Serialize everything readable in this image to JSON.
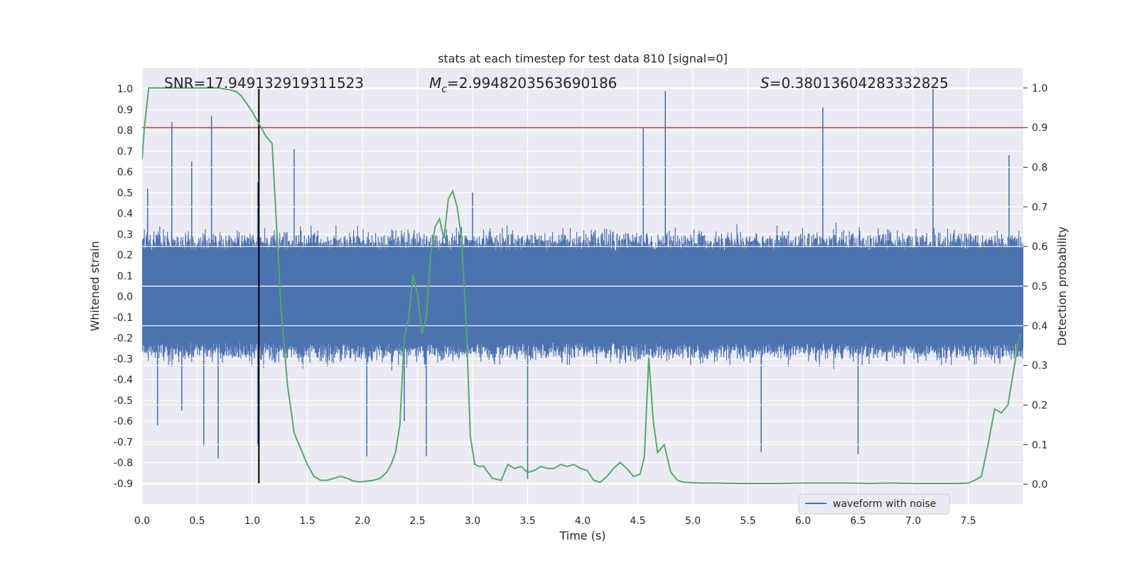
{
  "chart_data": {
    "type": "line",
    "title": "stats at each timestep for test data 810 [signal=0]",
    "xlabel": "Time (s)",
    "ylabel": "Whitened strain",
    "y2label": "Detection probability",
    "xlim": [
      0,
      8
    ],
    "ylim": [
      -1.0,
      1.1
    ],
    "y2lim": [
      -0.05,
      1.05
    ],
    "xticks": [
      "0.0",
      "0.5",
      "1.0",
      "1.5",
      "2.0",
      "2.5",
      "3.0",
      "3.5",
      "4.0",
      "4.5",
      "5.0",
      "5.5",
      "6.0",
      "6.5",
      "7.0",
      "7.5"
    ],
    "yticks": [
      "1.0",
      "0.9",
      "0.8",
      "0.7",
      "0.6",
      "0.5",
      "0.4",
      "0.3",
      "0.2",
      "0.1",
      "0.0",
      "-0.1",
      "-0.2",
      "-0.3",
      "-0.4",
      "-0.5",
      "-0.6",
      "-0.7",
      "-0.8",
      "-0.9"
    ],
    "y2ticks": [
      "1.0",
      "0.9",
      "0.8",
      "0.7",
      "0.6",
      "0.5",
      "0.4",
      "0.3",
      "0.2",
      "0.1",
      "0.0"
    ],
    "grid": true,
    "legend": {
      "position": "lower-right",
      "entries": [
        "waveform with noise"
      ]
    },
    "annotations": {
      "snr": "SNR=17.949132919311523",
      "mc": "=2.9948203563690186",
      "s": "=0.38013604283332825"
    },
    "threshold_line": {
      "axis": "y2",
      "value": 0.9,
      "color": "#c44e52"
    },
    "marker_line": {
      "x": 1.06,
      "y_from": -0.9,
      "y_to": 1.0,
      "color": "#000000"
    },
    "series": [
      {
        "name": "waveform with noise",
        "axis": "y",
        "color": "#4c72b0",
        "kind": "dense-noise",
        "envelope_typical": 0.45,
        "peaks": [
          {
            "x": 0.05,
            "y": 0.52
          },
          {
            "x": 0.14,
            "y": -0.62
          },
          {
            "x": 0.27,
            "y": 0.84
          },
          {
            "x": 0.36,
            "y": -0.55
          },
          {
            "x": 0.45,
            "y": 0.65
          },
          {
            "x": 0.56,
            "y": -0.72
          },
          {
            "x": 0.63,
            "y": 0.87
          },
          {
            "x": 0.69,
            "y": -0.78
          },
          {
            "x": 1.05,
            "y": 0.55
          },
          {
            "x": 1.05,
            "y": -0.72
          },
          {
            "x": 1.38,
            "y": 0.71
          },
          {
            "x": 2.04,
            "y": -0.77
          },
          {
            "x": 2.38,
            "y": -0.6
          },
          {
            "x": 2.58,
            "y": -0.77
          },
          {
            "x": 3.0,
            "y": 0.5
          },
          {
            "x": 3.5,
            "y": -0.88
          },
          {
            "x": 4.55,
            "y": 0.81
          },
          {
            "x": 4.75,
            "y": 0.99
          },
          {
            "x": 5.62,
            "y": -0.75
          },
          {
            "x": 6.18,
            "y": 0.91
          },
          {
            "x": 6.5,
            "y": -0.76
          },
          {
            "x": 7.18,
            "y": 1.0
          },
          {
            "x": 7.87,
            "y": 0.68
          }
        ]
      },
      {
        "name": "",
        "axis": "y2",
        "color": "#55a868",
        "x": [
          0.0,
          0.02,
          0.06,
          0.12,
          0.2,
          0.4,
          0.6,
          0.7,
          0.8,
          0.86,
          0.9,
          0.95,
          1.0,
          1.06,
          1.12,
          1.18,
          1.26,
          1.32,
          1.38,
          1.44,
          1.5,
          1.56,
          1.62,
          1.68,
          1.74,
          1.8,
          1.86,
          1.92,
          1.98,
          2.04,
          2.1,
          2.16,
          2.22,
          2.26,
          2.3,
          2.34,
          2.38,
          2.42,
          2.46,
          2.5,
          2.54,
          2.58,
          2.62,
          2.66,
          2.7,
          2.74,
          2.78,
          2.82,
          2.86,
          2.9,
          2.94,
          2.98,
          3.02,
          3.06,
          3.1,
          3.14,
          3.18,
          3.26,
          3.32,
          3.38,
          3.44,
          3.5,
          3.56,
          3.62,
          3.68,
          3.74,
          3.8,
          3.86,
          3.92,
          3.98,
          4.04,
          4.1,
          4.16,
          4.22,
          4.28,
          4.34,
          4.4,
          4.46,
          4.52,
          4.56,
          4.6,
          4.64,
          4.68,
          4.74,
          4.8,
          4.86,
          4.92,
          5.0,
          5.08,
          5.2,
          5.4,
          5.6,
          5.8,
          6.0,
          6.2,
          6.4,
          6.6,
          6.8,
          7.0,
          7.2,
          7.4,
          7.5,
          7.56,
          7.62,
          7.68,
          7.74,
          7.8,
          7.86,
          7.92,
          7.97
        ],
        "y": [
          0.82,
          0.9,
          1.0,
          1.0,
          1.0,
          1.0,
          1.0,
          1.0,
          0.995,
          0.99,
          0.98,
          0.96,
          0.94,
          0.91,
          0.88,
          0.86,
          0.45,
          0.25,
          0.13,
          0.09,
          0.05,
          0.02,
          0.01,
          0.01,
          0.015,
          0.02,
          0.015,
          0.008,
          0.006,
          0.008,
          0.01,
          0.015,
          0.03,
          0.05,
          0.08,
          0.15,
          0.37,
          0.42,
          0.53,
          0.48,
          0.38,
          0.42,
          0.58,
          0.65,
          0.67,
          0.62,
          0.72,
          0.74,
          0.7,
          0.62,
          0.42,
          0.12,
          0.05,
          0.045,
          0.046,
          0.03,
          0.015,
          0.01,
          0.05,
          0.04,
          0.045,
          0.03,
          0.035,
          0.045,
          0.04,
          0.04,
          0.05,
          0.045,
          0.05,
          0.04,
          0.035,
          0.01,
          0.005,
          0.02,
          0.04,
          0.055,
          0.04,
          0.02,
          0.025,
          0.07,
          0.32,
          0.16,
          0.08,
          0.1,
          0.03,
          0.01,
          0.005,
          0.004,
          0.003,
          0.003,
          0.002,
          0.002,
          0.002,
          0.003,
          0.003,
          0.003,
          0.002,
          0.003,
          0.002,
          0.002,
          0.002,
          0.003,
          0.01,
          0.02,
          0.1,
          0.19,
          0.18,
          0.2,
          0.3,
          0.38
        ]
      }
    ]
  }
}
